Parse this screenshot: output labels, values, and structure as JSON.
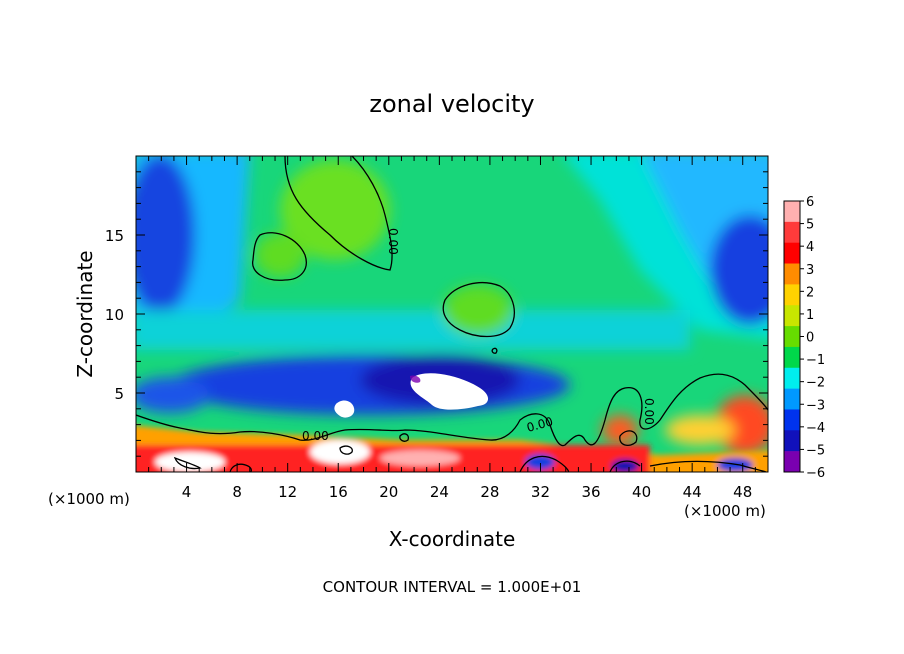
{
  "chart_data": {
    "type": "heatmap",
    "title": "zonal velocity",
    "xlabel": "X-coordinate",
    "ylabel": "Z-coordinate",
    "x_unit_label": "(×1000 m)",
    "xlim": [
      0,
      50
    ],
    "ylim": [
      0,
      20
    ],
    "x_ticks": [
      4,
      8,
      12,
      16,
      20,
      24,
      28,
      32,
      36,
      40,
      44,
      48
    ],
    "y_ticks": [
      5,
      10,
      15
    ],
    "colorbar": {
      "levels": [
        6,
        5,
        4,
        3,
        2,
        1,
        0,
        -1,
        -2,
        -3,
        -4,
        -5,
        -6
      ],
      "labels": [
        "6",
        "5",
        "4",
        "3",
        "2",
        "1",
        "0",
        "−1",
        "−2",
        "−3",
        "−4",
        "−5",
        "−6"
      ],
      "colors": [
        "#ffb0b0",
        "#ff3b3b",
        "#ff0000",
        "#ff8c00",
        "#ffd200",
        "#c8e600",
        "#66dd00",
        "#00d84a",
        "#00eeee",
        "#0099ff",
        "#0033ee",
        "#1111bb",
        "#7a00b0"
      ]
    },
    "contour_labels": [
      "0.00",
      "0.00",
      "0.00",
      "0.00"
    ],
    "footer": "CONTOUR INTERVAL = 1.000E+01"
  }
}
